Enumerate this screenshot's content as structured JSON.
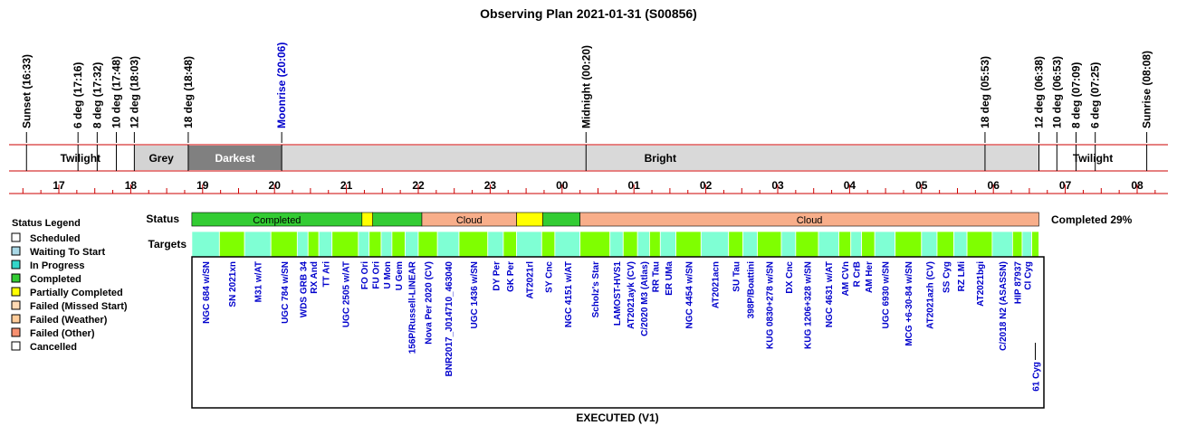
{
  "title": "Observing Plan 2021-01-31 (S00856)",
  "footer": "EXECUTED (V1)",
  "completed_label": "Completed 29%",
  "status_row_label": "Status",
  "targets_row_label": "Targets",
  "legend": {
    "title": "Status Legend",
    "items": [
      {
        "label": "Scheduled",
        "color": "#ffffff"
      },
      {
        "label": "Waiting To Start",
        "color": "#a9d8e6"
      },
      {
        "label": "In Progress",
        "color": "#33d6c9"
      },
      {
        "label": "Completed",
        "color": "#33cc33"
      },
      {
        "label": "Partially Completed",
        "color": "#ffff00"
      },
      {
        "label": "Failed (Missed Start)",
        "color": "#ffd9b3"
      },
      {
        "label": "Failed (Weather)",
        "color": "#ffcc99"
      },
      {
        "label": "Failed (Other)",
        "color": "#f79070"
      },
      {
        "label": "Cancelled",
        "color": "#ffffff"
      }
    ]
  },
  "chart_data": {
    "type": "timeline",
    "title": "Observing Plan 2021-01-31 (S00856)",
    "x_axis": {
      "unit": "hour",
      "range": [
        "16:33",
        "08:08"
      ],
      "tick_labels": [
        "17",
        "18",
        "19",
        "20",
        "21",
        "22",
        "23",
        "00",
        "01",
        "02",
        "03",
        "04",
        "05",
        "06",
        "07",
        "08"
      ]
    },
    "events": [
      {
        "label": "Sunset (16:33)",
        "time": "16:33",
        "color": "#000000"
      },
      {
        "label": "6 deg (17:16)",
        "time": "17:16",
        "color": "#000000"
      },
      {
        "label": "8 deg (17:32)",
        "time": "17:32",
        "color": "#000000"
      },
      {
        "label": "10 deg (17:48)",
        "time": "17:48",
        "color": "#000000"
      },
      {
        "label": "12 deg (18:03)",
        "time": "18:03",
        "color": "#000000"
      },
      {
        "label": "18 deg (18:48)",
        "time": "18:48",
        "color": "#000000"
      },
      {
        "label": "Moonrise (20:06)",
        "time": "20:06",
        "color": "#0000cc"
      },
      {
        "label": "Midnight (00:20)",
        "time": "00:20",
        "color": "#000000"
      },
      {
        "label": "18 deg (05:53)",
        "time": "05:53",
        "color": "#000000"
      },
      {
        "label": "12 deg (06:38)",
        "time": "06:38",
        "color": "#000000"
      },
      {
        "label": "10 deg (06:53)",
        "time": "06:53",
        "color": "#000000"
      },
      {
        "label": "8 deg (07:09)",
        "time": "07:09",
        "color": "#000000"
      },
      {
        "label": "6 deg (07:25)",
        "time": "07:25",
        "color": "#000000"
      },
      {
        "label": "Sunrise (08:08)",
        "time": "08:08",
        "color": "#000000"
      }
    ],
    "sky_phases": [
      {
        "label": "Twilight",
        "start": "16:33",
        "end": "18:03",
        "fill": "#ffffff",
        "text": "#000000"
      },
      {
        "label": "Grey",
        "start": "18:03",
        "end": "18:48",
        "fill": "#d3d3d3",
        "text": "#000000"
      },
      {
        "label": "Darkest",
        "start": "18:48",
        "end": "20:06",
        "fill": "#808080",
        "text": "#ffffff"
      },
      {
        "label": "Bright",
        "start": "20:06",
        "end": "06:38",
        "fill": "#d9d9d9",
        "text": "#000000"
      },
      {
        "label": "Twilight",
        "start": "06:38",
        "end": "08:08",
        "fill": "#ffffff",
        "text": "#000000"
      }
    ],
    "status_segments": [
      {
        "label": "Completed",
        "start": "18:51",
        "end": "21:13",
        "color": "#33cc33"
      },
      {
        "label": "",
        "start": "21:13",
        "end": "21:22",
        "color": "#ffff00"
      },
      {
        "label": "",
        "start": "21:22",
        "end": "22:03",
        "color": "#33cc33"
      },
      {
        "label": "Cloud",
        "start": "22:03",
        "end": "23:22",
        "color": "#f8ae8a"
      },
      {
        "label": "",
        "start": "23:22",
        "end": "23:44",
        "color": "#ffff00"
      },
      {
        "label": "",
        "start": "23:44",
        "end": "00:15",
        "color": "#33cc33"
      },
      {
        "label": "Cloud",
        "start": "00:15",
        "end": "06:38",
        "color": "#f8ae8a"
      }
    ],
    "targets": [
      {
        "name": "NGC 684 w/SN",
        "start": "18:51",
        "end": "19:14",
        "color": "#7fffd4"
      },
      {
        "name": "SN 2021xn",
        "start": "19:14",
        "end": "19:35",
        "color": "#7fff00"
      },
      {
        "name": "M31 w/AT",
        "start": "19:35",
        "end": "19:57",
        "color": "#7fffd4"
      },
      {
        "name": "UGC 784 w/SN",
        "start": "19:57",
        "end": "20:19",
        "color": "#7fff00"
      },
      {
        "name": "WDS GRB 34",
        "start": "20:19",
        "end": "20:28",
        "color": "#7fffd4"
      },
      {
        "name": "RX And",
        "start": "20:28",
        "end": "20:37",
        "color": "#7fff00"
      },
      {
        "name": "TT Ari",
        "start": "20:37",
        "end": "20:48",
        "color": "#7fffd4"
      },
      {
        "name": "UGC 2505 w/AT",
        "start": "20:48",
        "end": "21:10",
        "color": "#7fff00"
      },
      {
        "name": "FO Ori",
        "start": "21:10",
        "end": "21:19",
        "color": "#7fffd4"
      },
      {
        "name": "FU Ori",
        "start": "21:19",
        "end": "21:29",
        "color": "#7fff00"
      },
      {
        "name": "U Mon",
        "start": "21:29",
        "end": "21:38",
        "color": "#7fffd4"
      },
      {
        "name": "U Gem",
        "start": "21:38",
        "end": "21:49",
        "color": "#7fff00"
      },
      {
        "name": "156P/Russell-LINEAR",
        "start": "21:49",
        "end": "22:00",
        "color": "#7fffd4"
      },
      {
        "name": "Nova Per 2020 (CV)",
        "start": "22:00",
        "end": "22:16",
        "color": "#7fff00"
      },
      {
        "name": "BNR2017_J014710_463040",
        "start": "22:16",
        "end": "22:34",
        "color": "#7fffd4"
      },
      {
        "name": "UGC 1436 w/SN",
        "start": "22:34",
        "end": "22:58",
        "color": "#7fff00"
      },
      {
        "name": "DY Per",
        "start": "22:58",
        "end": "23:11",
        "color": "#7fffd4"
      },
      {
        "name": "GK Per",
        "start": "23:11",
        "end": "23:22",
        "color": "#7fff00"
      },
      {
        "name": "AT2021rl",
        "start": "23:22",
        "end": "23:43",
        "color": "#7fffd4"
      },
      {
        "name": "SY Cnc",
        "start": "23:43",
        "end": "23:54",
        "color": "#7fff00"
      },
      {
        "name": "NGC 4151 w/AT",
        "start": "23:54",
        "end": "00:15",
        "color": "#7fffd4"
      },
      {
        "name": "Scholz's Star",
        "start": "00:15",
        "end": "00:40",
        "color": "#7fff00"
      },
      {
        "name": "LAMOST-HVS1",
        "start": "00:40",
        "end": "00:51",
        "color": "#7fffd4"
      },
      {
        "name": "AT2021ayk (CV)",
        "start": "00:51",
        "end": "01:03",
        "color": "#7fff00"
      },
      {
        "name": "C/2020 M3 (Atlas)",
        "start": "01:03",
        "end": "01:13",
        "color": "#7fffd4"
      },
      {
        "name": "RR Tau",
        "start": "01:13",
        "end": "01:22",
        "color": "#7fff00"
      },
      {
        "name": "ER UMa",
        "start": "01:22",
        "end": "01:35",
        "color": "#7fffd4"
      },
      {
        "name": "NGC 4454 w/SN",
        "start": "01:35",
        "end": "01:56",
        "color": "#7fff00"
      },
      {
        "name": "AT2021acn",
        "start": "01:56",
        "end": "02:19",
        "color": "#7fffd4"
      },
      {
        "name": "SU Tau",
        "start": "02:19",
        "end": "02:31",
        "color": "#7fff00"
      },
      {
        "name": "398P/Boattini",
        "start": "02:31",
        "end": "02:43",
        "color": "#7fffd4"
      },
      {
        "name": "KUG 0830+278 w/SN",
        "start": "02:43",
        "end": "03:03",
        "color": "#7fff00"
      },
      {
        "name": "DX Cnc",
        "start": "03:03",
        "end": "03:15",
        "color": "#7fffd4"
      },
      {
        "name": "KUG 1206+328 w/SN",
        "start": "03:15",
        "end": "03:34",
        "color": "#7fff00"
      },
      {
        "name": "NGC 4631 w/AT",
        "start": "03:34",
        "end": "03:51",
        "color": "#7fffd4"
      },
      {
        "name": "AM CVn",
        "start": "03:51",
        "end": "04:01",
        "color": "#7fff00"
      },
      {
        "name": "R CrB",
        "start": "04:01",
        "end": "04:10",
        "color": "#7fffd4"
      },
      {
        "name": "AM Her",
        "start": "04:10",
        "end": "04:21",
        "color": "#7fff00"
      },
      {
        "name": "UGC 6930 w/SN",
        "start": "04:21",
        "end": "04:38",
        "color": "#7fffd4"
      },
      {
        "name": "MCG +6-30-84 w/SN",
        "start": "04:38",
        "end": "05:00",
        "color": "#7fff00"
      },
      {
        "name": "AT2021azh (CV)",
        "start": "05:00",
        "end": "05:13",
        "color": "#7fffd4"
      },
      {
        "name": "SS Cyg",
        "start": "05:13",
        "end": "05:27",
        "color": "#7fff00"
      },
      {
        "name": "RZ LMi",
        "start": "05:27",
        "end": "05:38",
        "color": "#7fffd4"
      },
      {
        "name": "AT2021bgi",
        "start": "05:38",
        "end": "05:59",
        "color": "#7fff00"
      },
      {
        "name": "C/2018 N2 (ASASSN)",
        "start": "05:59",
        "end": "06:16",
        "color": "#7fffd4"
      },
      {
        "name": "HIP 87937",
        "start": "06:16",
        "end": "06:24",
        "color": "#7fff00"
      },
      {
        "name": "CI Cyg",
        "start": "06:24",
        "end": "06:32",
        "color": "#7fffd4"
      },
      {
        "name": "61 Cyg",
        "start": "06:32",
        "end": "06:38",
        "color": "#7fff00"
      }
    ]
  }
}
